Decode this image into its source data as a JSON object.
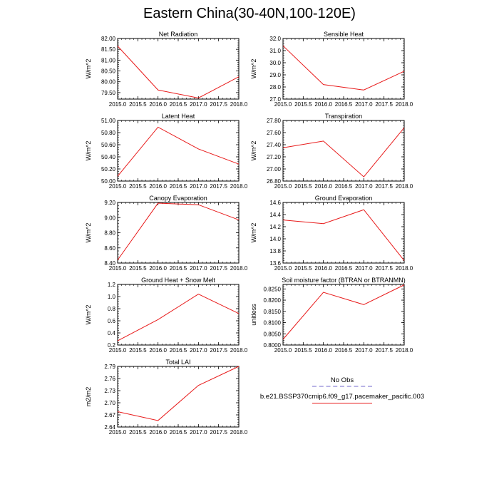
{
  "figure": {
    "title": "Eastern China(30-40N,100-120E)"
  },
  "legend": {
    "obs_label": "No Obs",
    "obs_color": "#b9b3e6",
    "model_label": "b.e21.BSSP370cmip6.f09_g17.pacemaker_pacific.003",
    "model_color": "#e81a1a"
  },
  "chart_data": [
    {
      "type": "line",
      "title": "Net Radiation",
      "ylabel": "W/m^2",
      "x": [
        2015,
        2016,
        2017,
        2018
      ],
      "x_ticks": [
        "2015.0",
        "2015.5",
        "2016.0",
        "2016.5",
        "2017.0",
        "2017.5",
        "2018.0"
      ],
      "xlim": [
        2015,
        2018
      ],
      "ylim": [
        79.2,
        82.0
      ],
      "y_ticks": [
        "79.50",
        "80.00",
        "80.50",
        "81.00",
        "81.50",
        "82.00"
      ],
      "series": [
        {
          "values": [
            81.65,
            79.62,
            79.25,
            80.23
          ]
        }
      ]
    },
    {
      "type": "line",
      "title": "Sensible Heat",
      "ylabel": "W/m^2",
      "x": [
        2015,
        2016,
        2017,
        2018
      ],
      "x_ticks": [
        "2015.0",
        "2015.5",
        "2016.0",
        "2016.5",
        "2017.0",
        "2017.5",
        "2018.0"
      ],
      "xlim": [
        2015,
        2018
      ],
      "ylim": [
        27.0,
        32.0
      ],
      "y_ticks": [
        "27.0",
        "28.0",
        "29.0",
        "30.0",
        "31.0",
        "32.0"
      ],
      "series": [
        {
          "values": [
            31.4,
            28.2,
            27.75,
            29.3
          ]
        }
      ]
    },
    {
      "type": "line",
      "title": "Latent Heat",
      "ylabel": "W/m^2",
      "x": [
        2015,
        2016,
        2017,
        2018
      ],
      "x_ticks": [
        "2015.0",
        "2015.5",
        "2016.0",
        "2016.5",
        "2017.0",
        "2017.5",
        "2018.0"
      ],
      "xlim": [
        2015,
        2018
      ],
      "ylim": [
        50.0,
        51.0
      ],
      "y_ticks": [
        "50.00",
        "50.20",
        "50.40",
        "50.60",
        "50.80",
        "51.00"
      ],
      "series": [
        {
          "values": [
            50.08,
            50.89,
            50.53,
            50.28
          ]
        }
      ]
    },
    {
      "type": "line",
      "title": "Transpiration",
      "ylabel": "W/m^2",
      "x": [
        2015,
        2016,
        2017,
        2018
      ],
      "x_ticks": [
        "2015.0",
        "2015.5",
        "2016.0",
        "2016.5",
        "2017.0",
        "2017.5",
        "2018.0"
      ],
      "xlim": [
        2015,
        2018
      ],
      "ylim": [
        26.8,
        27.8
      ],
      "y_ticks": [
        "26.80",
        "27.00",
        "27.20",
        "27.40",
        "27.60",
        "27.80"
      ],
      "series": [
        {
          "values": [
            27.35,
            27.46,
            26.87,
            27.68
          ]
        }
      ]
    },
    {
      "type": "line",
      "title": "Canopy Evaporation",
      "ylabel": "W/m^2",
      "x": [
        2015,
        2016,
        2017,
        2018
      ],
      "x_ticks": [
        "2015.0",
        "2015.5",
        "2016.0",
        "2016.5",
        "2017.0",
        "2017.5",
        "2018.0"
      ],
      "xlim": [
        2015,
        2018
      ],
      "ylim": [
        8.4,
        9.2
      ],
      "y_ticks": [
        "8.40",
        "8.60",
        "8.80",
        "9.00",
        "9.20"
      ],
      "series": [
        {
          "values": [
            8.44,
            9.19,
            9.17,
            8.97
          ]
        }
      ]
    },
    {
      "type": "line",
      "title": "Ground Evaporation",
      "ylabel": "W/m^2",
      "x": [
        2015,
        2016,
        2017,
        2018
      ],
      "x_ticks": [
        "2015.0",
        "2015.5",
        "2016.0",
        "2016.5",
        "2017.0",
        "2017.5",
        "2018.0"
      ],
      "xlim": [
        2015,
        2018
      ],
      "ylim": [
        13.6,
        14.6
      ],
      "y_ticks": [
        "13.6",
        "13.8",
        "14.0",
        "14.2",
        "14.4",
        "14.6"
      ],
      "series": [
        {
          "values": [
            14.31,
            14.25,
            14.48,
            13.64
          ]
        }
      ]
    },
    {
      "type": "line",
      "title": "Ground Heat + Snow Melt",
      "ylabel": "W/m^2",
      "x": [
        2015,
        2016,
        2017,
        2018
      ],
      "x_ticks": [
        "2015.0",
        "2015.5",
        "2016.0",
        "2016.5",
        "2017.0",
        "2017.5",
        "2018.0"
      ],
      "xlim": [
        2015,
        2018
      ],
      "ylim": [
        0.2,
        1.2
      ],
      "y_ticks": [
        "0.2",
        "0.4",
        "0.6",
        "0.8",
        "1.0",
        "1.2"
      ],
      "series": [
        {
          "values": [
            0.27,
            0.62,
            1.04,
            0.72
          ]
        }
      ]
    },
    {
      "type": "line",
      "title": "Soil moisture factor (BTRAN or BTRANMN)",
      "ylabel": "unitless",
      "x": [
        2015,
        2016,
        2017,
        2018
      ],
      "x_ticks": [
        "2015.0",
        "2015.5",
        "2016.0",
        "2016.5",
        "2017.0",
        "2017.5",
        "2018.0"
      ],
      "xlim": [
        2015,
        2018
      ],
      "ylim": [
        0.8,
        0.827
      ],
      "y_ticks": [
        "0.8000",
        "0.8050",
        "0.8100",
        "0.8150",
        "0.8200",
        "0.8250"
      ],
      "series": [
        {
          "values": [
            0.8025,
            0.8235,
            0.818,
            0.8268
          ]
        }
      ]
    },
    {
      "type": "line",
      "title": "Total LAI",
      "ylabel": "m2/m2",
      "x": [
        2015,
        2016,
        2017,
        2018
      ],
      "x_ticks": [
        "2015.0",
        "2015.5",
        "2016.0",
        "2016.5",
        "2017.0",
        "2017.5",
        "2018.0"
      ],
      "xlim": [
        2015,
        2018
      ],
      "ylim": [
        2.64,
        2.79
      ],
      "y_ticks": [
        "2.64",
        "2.67",
        "2.70",
        "2.73",
        "2.76",
        "2.79"
      ],
      "series": [
        {
          "values": [
            2.678,
            2.656,
            2.743,
            2.79
          ]
        }
      ]
    }
  ]
}
